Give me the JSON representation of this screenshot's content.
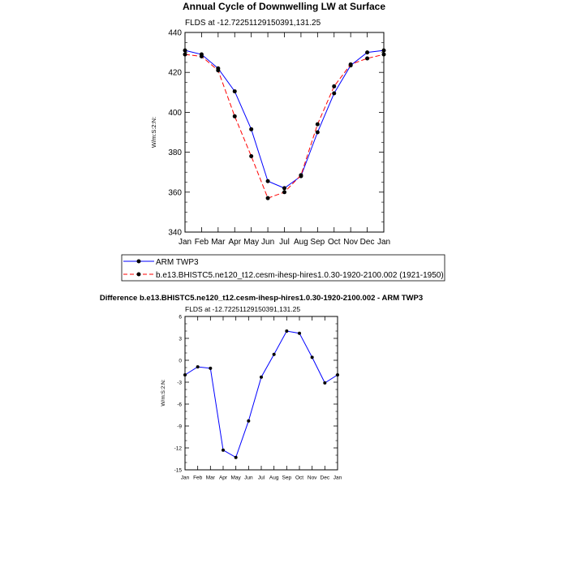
{
  "chart_data": [
    {
      "type": "line",
      "title": "Annual Cycle of Downwelling LW at Surface",
      "subtitle": "FLDS at -12.72251129150391,131.25",
      "ylabel": "W/m:S:2:N:",
      "ylim": [
        340,
        440
      ],
      "yticks": [
        340,
        360,
        380,
        400,
        420,
        440
      ],
      "categories": [
        "Jan",
        "Feb",
        "Mar",
        "Apr",
        "May",
        "Jun",
        "Jul",
        "Aug",
        "Sep",
        "Oct",
        "Nov",
        "Dec",
        "Jan"
      ],
      "grid": false,
      "legend_position": "bottom",
      "series": [
        {
          "name": "ARM TWP3",
          "color": "#0000ff",
          "dash": "solid",
          "values": [
            431,
            429,
            422,
            410.5,
            391.5,
            365.5,
            362,
            368,
            390,
            409.5,
            423.5,
            430,
            431
          ]
        },
        {
          "name": "b.e13.BHISTC5.ne120_t12.cesm-ihesp-hires1.0.30-1920-2100.002 (1921-1950)",
          "color": "#ff0000",
          "dash": "dashed",
          "values": [
            429,
            428,
            421,
            398,
            378,
            357,
            360,
            368.5,
            394,
            413,
            424,
            427,
            429
          ]
        }
      ]
    },
    {
      "type": "line",
      "title": "Difference b.e13.BHISTC5.ne120_t12.cesm-ihesp-hires1.0.30-1920-2100.002 - ARM TWP3",
      "subtitle": "FLDS at -12.72251129150391,131.25",
      "ylabel": "W/m:S:2:N:",
      "ylim": [
        -15,
        6
      ],
      "yticks": [
        -15,
        -12,
        -9,
        -6,
        -3,
        0,
        3,
        6
      ],
      "categories": [
        "Jan",
        "Feb",
        "Mar",
        "Apr",
        "May",
        "Jun",
        "Jul",
        "Aug",
        "Sep",
        "Oct",
        "Nov",
        "Dec",
        "Jan"
      ],
      "grid": false,
      "series": [
        {
          "name": "",
          "color": "#0000ff",
          "dash": "solid",
          "values": [
            -2,
            -0.9,
            -1.1,
            -12.3,
            -13.3,
            -8.3,
            -2.3,
            0.8,
            4,
            3.7,
            0.4,
            -3.1,
            -2
          ]
        }
      ]
    }
  ]
}
